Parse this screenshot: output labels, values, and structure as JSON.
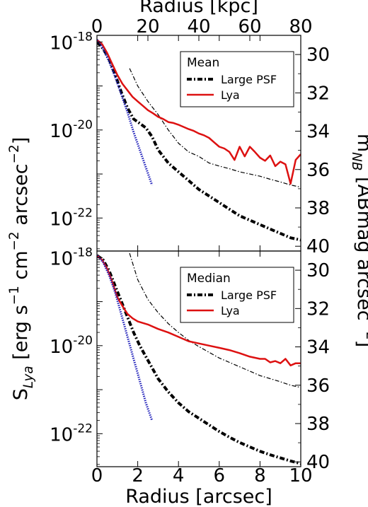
{
  "chart_data": {
    "type": "line",
    "x_axis_bottom": {
      "label": "Radius [arcsec]",
      "range": [
        0,
        10
      ],
      "ticks": [
        0,
        2,
        4,
        6,
        8,
        10
      ]
    },
    "x_axis_top": {
      "label": "Radius [kpc]",
      "range": [
        0,
        80
      ],
      "ticks": [
        0,
        20,
        40,
        60,
        80
      ]
    },
    "y_axis_left": {
      "label": "S_Lya [erg s^-1 cm^-2 arcsec^-2]",
      "scale": "log",
      "ticks": [
        {
          "label": "10^-18",
          "value": -18
        },
        {
          "label": "10^-20",
          "value": -20
        },
        {
          "label": "10^-22",
          "value": -22
        }
      ]
    },
    "y_axis_right": {
      "label": "m_NB [ABmag arcsec^-2]",
      "ticks": [
        30,
        32,
        34,
        36,
        38,
        40
      ]
    },
    "panels": [
      {
        "legend_title": "Mean",
        "legend_position": "top-right",
        "ylim_log": [
          -22.75,
          -17.85
        ],
        "mag_range": [
          29,
          40.25
        ],
        "series": [
          {
            "name": "Large PSF",
            "style": "dashdot-thick",
            "color": "#000000",
            "x": [
              0,
              0.3,
              0.6,
              0.9,
              1.2,
              1.5,
              1.8,
              2.1,
              2.4,
              2.7,
              3.0,
              3.5,
              4.0,
              4.5,
              5.0,
              5.5,
              6.0,
              6.5,
              7.0,
              7.5,
              8.0,
              8.5,
              9.0,
              9.5,
              10.0
            ],
            "y": [
              -18.0,
              -18.15,
              -18.4,
              -18.75,
              -19.15,
              -19.5,
              -19.75,
              -19.85,
              -19.95,
              -20.15,
              -20.45,
              -20.75,
              -20.95,
              -21.15,
              -21.35,
              -21.5,
              -21.65,
              -21.8,
              -21.95,
              -22.05,
              -22.15,
              -22.25,
              -22.35,
              -22.45,
              -22.5
            ]
          },
          {
            "name": "",
            "style": "dashdot-thin",
            "color": "#000000",
            "x": [
              1.6,
              2.0,
              2.5,
              3.0,
              3.5,
              4.0,
              4.5,
              5.0,
              5.5,
              6.0,
              6.5,
              7.0,
              7.5,
              8.0,
              8.5,
              9.0,
              9.5,
              10.0
            ],
            "y": [
              -18.6,
              -19.0,
              -19.35,
              -19.65,
              -20.0,
              -20.3,
              -20.5,
              -20.6,
              -20.75,
              -20.82,
              -20.88,
              -20.95,
              -21.0,
              -21.05,
              -21.12,
              -21.18,
              -21.25,
              -21.3
            ]
          },
          {
            "name": "Lya",
            "style": "solid",
            "color": "#dd1111",
            "x": [
              0,
              0.25,
              0.5,
              0.75,
              1.0,
              1.25,
              1.5,
              1.75,
              2.0,
              2.25,
              2.5,
              2.75,
              3.0,
              3.25,
              3.5,
              3.75,
              4.0,
              4.25,
              4.5,
              4.75,
              5.0,
              5.25,
              5.5,
              5.75,
              6.0,
              6.25,
              6.5,
              6.75,
              7.0,
              7.25,
              7.5,
              7.75,
              8.0,
              8.25,
              8.5,
              8.75,
              9.0,
              9.25,
              9.5,
              9.75,
              10.0
            ],
            "y": [
              -17.95,
              -18.05,
              -18.25,
              -18.5,
              -18.75,
              -18.95,
              -19.1,
              -19.25,
              -19.35,
              -19.45,
              -19.55,
              -19.62,
              -19.7,
              -19.75,
              -19.82,
              -19.84,
              -19.88,
              -19.93,
              -19.98,
              -20.02,
              -20.08,
              -20.12,
              -20.18,
              -20.28,
              -20.38,
              -20.42,
              -20.5,
              -20.68,
              -20.38,
              -20.6,
              -20.38,
              -20.5,
              -20.63,
              -20.7,
              -20.58,
              -20.82,
              -20.72,
              -20.78,
              -21.22,
              -20.68,
              -20.55
            ]
          },
          {
            "name": "",
            "style": "dotted",
            "color": "#2222bb",
            "x": [
              0,
              0.3,
              0.6,
              0.9,
              1.2,
              1.5,
              1.8,
              2.1,
              2.4,
              2.7
            ],
            "y": [
              -17.95,
              -18.15,
              -18.45,
              -18.8,
              -19.2,
              -19.6,
              -20.05,
              -20.45,
              -20.85,
              -21.25
            ]
          }
        ]
      },
      {
        "legend_title": "Median",
        "legend_position": "top-right",
        "ylim_log": [
          -22.75,
          -17.85
        ],
        "mag_range": [
          29,
          40.25
        ],
        "series": [
          {
            "name": "Large PSF",
            "style": "dashdot-thick",
            "color": "#000000",
            "x": [
              0,
              0.3,
              0.6,
              0.9,
              1.2,
              1.5,
              1.8,
              2.1,
              2.4,
              2.7,
              3.0,
              3.5,
              4.0,
              4.5,
              5.0,
              5.5,
              6.0,
              6.5,
              7.0,
              7.5,
              8.0,
              8.5,
              9.0,
              9.5,
              10.0
            ],
            "y": [
              -17.95,
              -18.05,
              -18.3,
              -18.65,
              -19.0,
              -19.35,
              -19.7,
              -20.0,
              -20.25,
              -20.5,
              -20.75,
              -21.05,
              -21.3,
              -21.5,
              -21.65,
              -21.8,
              -21.95,
              -22.08,
              -22.2,
              -22.3,
              -22.4,
              -22.48,
              -22.55,
              -22.62,
              -22.68
            ]
          },
          {
            "name": "",
            "style": "dashdot-thin",
            "color": "#000000",
            "x": [
              1.6,
              2.0,
              2.5,
              3.0,
              3.5,
              4.0,
              4.5,
              5.0,
              5.5,
              6.0,
              6.5,
              7.0,
              7.5,
              8.0,
              8.5,
              9.0,
              9.5,
              10.0
            ],
            "y": [
              -17.9,
              -18.5,
              -18.95,
              -19.25,
              -19.5,
              -19.7,
              -19.88,
              -20.02,
              -20.15,
              -20.28,
              -20.38,
              -20.48,
              -20.58,
              -20.68,
              -20.75,
              -20.82,
              -20.9,
              -20.95
            ]
          },
          {
            "name": "Lya",
            "style": "solid",
            "color": "#dd1111",
            "x": [
              0,
              0.25,
              0.5,
              0.75,
              1.0,
              1.25,
              1.5,
              1.75,
              2.0,
              2.5,
              3.0,
              3.5,
              4.0,
              4.5,
              5.0,
              5.5,
              6.0,
              6.5,
              7.0,
              7.5,
              8.0,
              8.25,
              8.5,
              8.75,
              9.0,
              9.25,
              9.5,
              9.75,
              10.0
            ],
            "y": [
              -17.95,
              -18.05,
              -18.25,
              -18.55,
              -18.9,
              -19.1,
              -19.28,
              -19.38,
              -19.45,
              -19.52,
              -19.62,
              -19.7,
              -19.8,
              -19.9,
              -19.95,
              -20.0,
              -20.05,
              -20.1,
              -20.17,
              -20.25,
              -20.3,
              -20.3,
              -20.38,
              -20.35,
              -20.4,
              -20.3,
              -20.45,
              -20.4,
              -20.4
            ]
          },
          {
            "name": "",
            "style": "dotted",
            "color": "#2222bb",
            "x": [
              0,
              0.3,
              0.6,
              0.9,
              1.2,
              1.5,
              1.8,
              2.1,
              2.4,
              2.7
            ],
            "y": [
              -17.95,
              -18.1,
              -18.4,
              -18.8,
              -19.3,
              -19.8,
              -20.3,
              -20.8,
              -21.3,
              -21.7
            ]
          }
        ]
      }
    ]
  }
}
